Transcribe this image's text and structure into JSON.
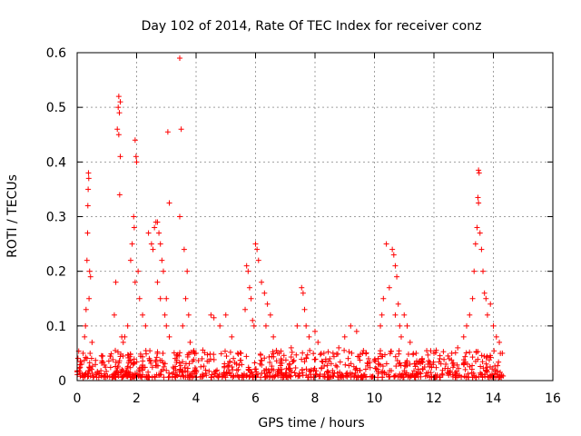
{
  "chart_data": {
    "type": "scatter",
    "title": "Day 102 of 2014, Rate Of TEC Index for receiver conz",
    "xlabel": "GPS time / hours",
    "ylabel": "ROTI / TECUs",
    "xlim": [
      0,
      16
    ],
    "ylim": [
      0,
      0.6
    ],
    "xticks": [
      "0",
      "2",
      "4",
      "6",
      "8",
      "10",
      "12",
      "14",
      "16"
    ],
    "yticks": [
      "0",
      "0.1",
      "0.2",
      "0.3",
      "0.4",
      "0.5",
      "0.6"
    ],
    "grid": true,
    "marker": "plus",
    "series": [
      {
        "name": "ROTI",
        "color": "#ff0000",
        "points": [
          [
            0.38,
            0.38
          ],
          [
            0.39,
            0.37
          ],
          [
            0.37,
            0.35
          ],
          [
            0.36,
            0.32
          ],
          [
            0.35,
            0.27
          ],
          [
            0.33,
            0.22
          ],
          [
            0.42,
            0.2
          ],
          [
            0.45,
            0.19
          ],
          [
            0.4,
            0.15
          ],
          [
            0.3,
            0.13
          ],
          [
            0.28,
            0.1
          ],
          [
            0.25,
            0.08
          ],
          [
            0.5,
            0.07
          ],
          [
            0.2,
            0.05
          ],
          [
            0.15,
            0.03
          ],
          [
            1.4,
            0.52
          ],
          [
            1.45,
            0.51
          ],
          [
            1.38,
            0.5
          ],
          [
            1.42,
            0.49
          ],
          [
            1.35,
            0.46
          ],
          [
            1.4,
            0.45
          ],
          [
            1.45,
            0.41
          ],
          [
            1.43,
            0.34
          ],
          [
            1.3,
            0.18
          ],
          [
            1.25,
            0.12
          ],
          [
            1.5,
            0.08
          ],
          [
            1.6,
            0.08
          ],
          [
            1.7,
            0.1
          ],
          [
            1.55,
            0.07
          ],
          [
            1.95,
            0.44
          ],
          [
            1.98,
            0.41
          ],
          [
            2.0,
            0.4
          ],
          [
            1.9,
            0.3
          ],
          [
            1.92,
            0.28
          ],
          [
            1.85,
            0.25
          ],
          [
            1.8,
            0.22
          ],
          [
            2.05,
            0.2
          ],
          [
            1.95,
            0.18
          ],
          [
            2.1,
            0.15
          ],
          [
            2.2,
            0.12
          ],
          [
            2.3,
            0.1
          ],
          [
            2.4,
            0.27
          ],
          [
            2.5,
            0.25
          ],
          [
            2.55,
            0.24
          ],
          [
            2.6,
            0.28
          ],
          [
            2.65,
            0.29
          ],
          [
            2.7,
            0.29
          ],
          [
            2.75,
            0.27
          ],
          [
            2.8,
            0.25
          ],
          [
            2.85,
            0.22
          ],
          [
            2.9,
            0.2
          ],
          [
            2.7,
            0.18
          ],
          [
            2.8,
            0.15
          ],
          [
            2.95,
            0.12
          ],
          [
            3.0,
            0.1
          ],
          [
            3.05,
            0.455
          ],
          [
            3.1,
            0.325
          ],
          [
            3.0,
            0.15
          ],
          [
            3.1,
            0.08
          ],
          [
            3.45,
            0.59
          ],
          [
            3.5,
            0.46
          ],
          [
            3.45,
            0.3
          ],
          [
            3.6,
            0.24
          ],
          [
            3.7,
            0.2
          ],
          [
            3.65,
            0.15
          ],
          [
            3.75,
            0.12
          ],
          [
            3.55,
            0.1
          ],
          [
            3.8,
            0.07
          ],
          [
            4.0,
            0.05
          ],
          [
            4.2,
            0.04
          ],
          [
            4.5,
            0.12
          ],
          [
            4.6,
            0.115
          ],
          [
            4.8,
            0.1
          ],
          [
            5.0,
            0.12
          ],
          [
            5.2,
            0.08
          ],
          [
            5.4,
            0.05
          ],
          [
            5.7,
            0.21
          ],
          [
            5.75,
            0.2
          ],
          [
            5.8,
            0.17
          ],
          [
            5.85,
            0.15
          ],
          [
            5.65,
            0.13
          ],
          [
            5.9,
            0.11
          ],
          [
            5.95,
            0.1
          ],
          [
            6.0,
            0.25
          ],
          [
            6.05,
            0.24
          ],
          [
            6.1,
            0.22
          ],
          [
            6.2,
            0.18
          ],
          [
            6.3,
            0.16
          ],
          [
            6.4,
            0.14
          ],
          [
            6.5,
            0.12
          ],
          [
            6.35,
            0.1
          ],
          [
            6.6,
            0.08
          ],
          [
            6.8,
            0.05
          ],
          [
            7.2,
            0.06
          ],
          [
            7.4,
            0.1
          ],
          [
            7.55,
            0.17
          ],
          [
            7.6,
            0.16
          ],
          [
            7.65,
            0.13
          ],
          [
            7.7,
            0.1
          ],
          [
            7.8,
            0.08
          ],
          [
            8.0,
            0.09
          ],
          [
            8.1,
            0.07
          ],
          [
            8.3,
            0.05
          ],
          [
            8.5,
            0.04
          ],
          [
            8.8,
            0.06
          ],
          [
            9.0,
            0.08
          ],
          [
            9.2,
            0.1
          ],
          [
            9.4,
            0.09
          ],
          [
            9.6,
            0.05
          ],
          [
            9.8,
            0.04
          ],
          [
            10.2,
            0.1
          ],
          [
            10.25,
            0.12
          ],
          [
            10.3,
            0.15
          ],
          [
            10.4,
            0.25
          ],
          [
            10.5,
            0.17
          ],
          [
            10.6,
            0.24
          ],
          [
            10.65,
            0.23
          ],
          [
            10.7,
            0.21
          ],
          [
            10.75,
            0.19
          ],
          [
            10.8,
            0.14
          ],
          [
            10.7,
            0.12
          ],
          [
            10.85,
            0.1
          ],
          [
            10.9,
            0.08
          ],
          [
            11.0,
            0.12
          ],
          [
            11.1,
            0.1
          ],
          [
            11.2,
            0.07
          ],
          [
            11.4,
            0.05
          ],
          [
            11.6,
            0.04
          ],
          [
            11.8,
            0.03
          ],
          [
            12.0,
            0.05
          ],
          [
            12.2,
            0.04
          ],
          [
            12.4,
            0.03
          ],
          [
            12.6,
            0.05
          ],
          [
            12.8,
            0.06
          ],
          [
            13.0,
            0.08
          ],
          [
            13.1,
            0.1
          ],
          [
            13.2,
            0.12
          ],
          [
            13.3,
            0.15
          ],
          [
            13.35,
            0.2
          ],
          [
            13.4,
            0.25
          ],
          [
            13.45,
            0.28
          ],
          [
            13.5,
            0.385
          ],
          [
            13.52,
            0.38
          ],
          [
            13.48,
            0.335
          ],
          [
            13.5,
            0.325
          ],
          [
            13.55,
            0.27
          ],
          [
            13.6,
            0.24
          ],
          [
            13.65,
            0.2
          ],
          [
            13.7,
            0.16
          ],
          [
            13.75,
            0.15
          ],
          [
            13.8,
            0.12
          ],
          [
            13.9,
            0.14
          ],
          [
            14.0,
            0.1
          ],
          [
            14.1,
            0.08
          ],
          [
            14.2,
            0.07
          ],
          [
            14.3,
            0.05
          ]
        ]
      }
    ]
  }
}
